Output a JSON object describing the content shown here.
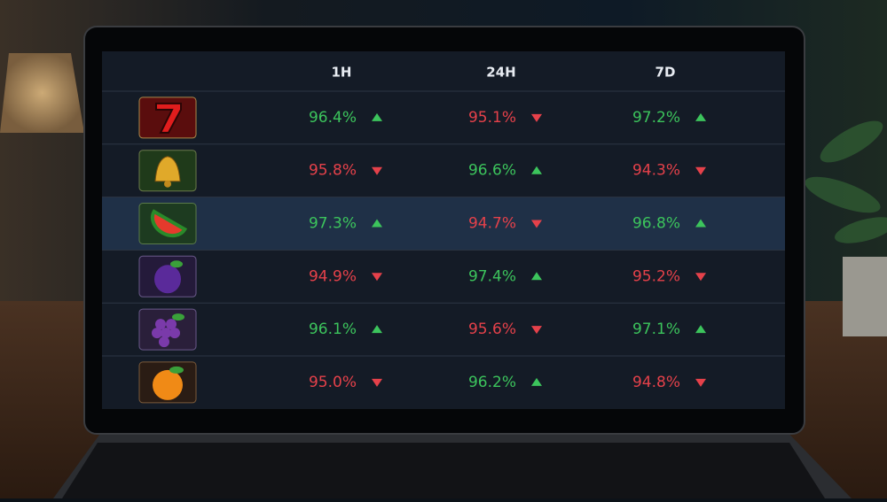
{
  "table": {
    "columns": [
      "1H",
      "24H",
      "7D"
    ],
    "rows": [
      {
        "highlighted": false,
        "cells": [
          {
            "text": "96.4%",
            "trend": "up"
          },
          {
            "text": "95.1%",
            "trend": "down"
          },
          {
            "text": "97.2%",
            "trend": "up"
          }
        ]
      },
      {
        "highlighted": false,
        "cells": [
          {
            "text": "95.8%",
            "trend": "down"
          },
          {
            "text": "96.6%",
            "trend": "up"
          },
          {
            "text": "94.3%",
            "trend": "down"
          }
        ]
      },
      {
        "highlighted": true,
        "cells": [
          {
            "text": "97.3%",
            "trend": "up"
          },
          {
            "text": "94.7%",
            "trend": "down"
          },
          {
            "text": "96.8%",
            "trend": "up"
          }
        ]
      },
      {
        "highlighted": false,
        "cells": [
          {
            "text": "94.9%",
            "trend": "down"
          },
          {
            "text": "97.4%",
            "trend": "up"
          },
          {
            "text": "95.2%",
            "trend": "down"
          }
        ]
      },
      {
        "highlighted": false,
        "cells": [
          {
            "text": "96.1%",
            "trend": "up"
          },
          {
            "text": "95.6%",
            "trend": "down"
          },
          {
            "text": "97.1%",
            "trend": "up"
          }
        ]
      },
      {
        "highlighted": false,
        "cells": [
          {
            "text": "95.0%",
            "trend": "down"
          },
          {
            "text": "96.2%",
            "trend": "up"
          },
          {
            "text": "94.8%",
            "trend": "down"
          }
        ]
      }
    ]
  }
}
